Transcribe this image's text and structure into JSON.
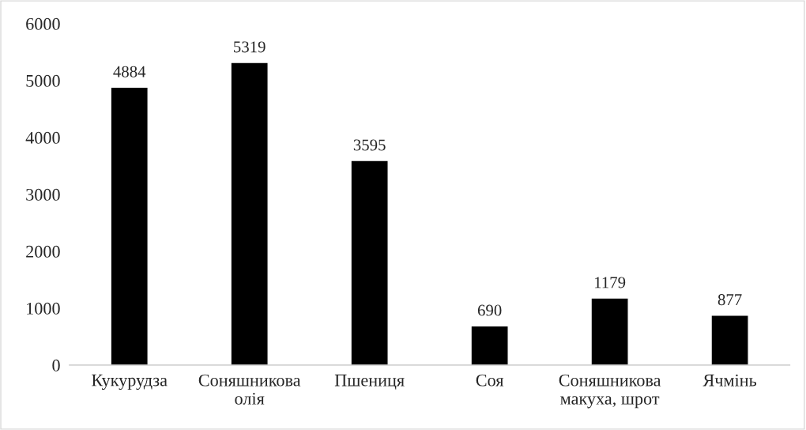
{
  "chart_data": {
    "type": "bar",
    "categories": [
      "Кукурудза",
      "Соняшникова\nолія",
      "Пшениця",
      "Соя",
      "Соняшникова\nмакуха, шрот",
      "Ячмінь"
    ],
    "values": [
      4884,
      5319,
      3595,
      690,
      1179,
      877
    ],
    "color": "#000000",
    "ylim": [
      0,
      6000
    ],
    "yticks": [
      0,
      1000,
      2000,
      3000,
      4000,
      5000,
      6000
    ],
    "grid": false,
    "data_labels": true
  }
}
